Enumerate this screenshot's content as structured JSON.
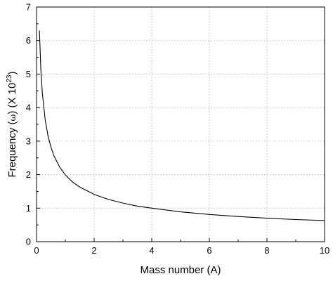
{
  "chart_data": {
    "type": "line",
    "title": "",
    "xlabel": "Mass number (A)",
    "ylabel": {
      "prefix": "Frequency (",
      "symbol": "ω",
      "suffix": ") (X 10",
      "exponent": "23",
      "close": ")"
    },
    "xlim": [
      0,
      10
    ],
    "ylim": [
      0,
      7
    ],
    "xticks": [
      "0",
      "2",
      "4",
      "6",
      "8",
      "10"
    ],
    "yticks": [
      "0",
      "1",
      "2",
      "3",
      "4",
      "5",
      "6",
      "7"
    ],
    "grid": true,
    "legend": "none",
    "line_color": "#000000",
    "series": [
      {
        "x": [
          0.1,
          0.15,
          0.2,
          0.3,
          0.4,
          0.5,
          0.6,
          0.8,
          1.0,
          1.25,
          1.5,
          2.0,
          2.5,
          3.0,
          3.5,
          4.0,
          5.0,
          6.0,
          7.0,
          8.0,
          9.0,
          10.0
        ],
        "y": [
          6.3,
          5.14,
          4.45,
          3.64,
          3.15,
          2.82,
          2.57,
          2.23,
          1.99,
          1.78,
          1.63,
          1.41,
          1.26,
          1.15,
          1.06,
          1.0,
          0.89,
          0.81,
          0.75,
          0.7,
          0.66,
          0.63
        ]
      }
    ]
  }
}
